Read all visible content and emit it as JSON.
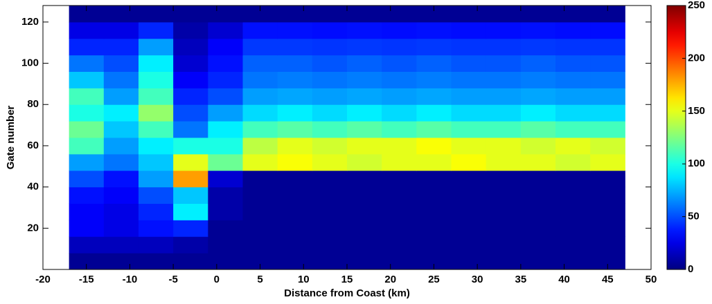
{
  "chart_data": {
    "type": "heatmap",
    "xlabel": "Distance from Coast (km)",
    "ylabel": "Gate number",
    "xlim": [
      -20,
      50
    ],
    "ylim": [
      0,
      128
    ],
    "xticks": [
      -20,
      -15,
      -10,
      -5,
      0,
      5,
      10,
      15,
      20,
      25,
      30,
      35,
      40,
      45,
      50
    ],
    "yticks": [
      20,
      40,
      60,
      80,
      100,
      120
    ],
    "x_edges": [
      -17,
      -13,
      -9,
      -5,
      -1,
      3,
      7,
      11,
      15,
      19,
      23,
      27,
      31,
      35,
      39,
      43,
      47
    ],
    "y_edges": [
      0,
      8,
      16,
      24,
      32,
      40,
      48,
      56,
      64,
      72,
      80,
      88,
      96,
      104,
      112,
      120,
      128
    ],
    "colorscale": "jet",
    "zlim": [
      0,
      250
    ],
    "zticks": [
      0,
      50,
      100,
      150,
      200,
      250
    ],
    "z": [
      [
        5,
        5,
        5,
        5,
        5,
        5,
        5,
        5,
        5,
        5,
        5,
        5,
        5,
        5,
        5,
        5
      ],
      [
        15,
        15,
        15,
        10,
        5,
        5,
        5,
        5,
        5,
        5,
        5,
        5,
        5,
        5,
        5,
        5
      ],
      [
        30,
        25,
        35,
        40,
        5,
        5,
        5,
        5,
        5,
        5,
        5,
        5,
        5,
        5,
        5,
        5
      ],
      [
        30,
        25,
        40,
        90,
        10,
        5,
        5,
        5,
        5,
        5,
        5,
        5,
        5,
        5,
        5,
        5
      ],
      [
        35,
        30,
        50,
        80,
        10,
        5,
        5,
        5,
        5,
        5,
        5,
        5,
        5,
        5,
        5,
        5
      ],
      [
        50,
        35,
        70,
        180,
        20,
        5,
        5,
        5,
        5,
        5,
        5,
        5,
        5,
        5,
        5,
        5
      ],
      [
        70,
        60,
        80,
        150,
        120,
        150,
        155,
        150,
        145,
        150,
        150,
        155,
        150,
        150,
        145,
        150
      ],
      [
        110,
        70,
        90,
        100,
        100,
        140,
        150,
        145,
        150,
        150,
        155,
        150,
        150,
        145,
        150,
        145
      ],
      [
        120,
        80,
        110,
        60,
        90,
        110,
        115,
        110,
        115,
        110,
        115,
        110,
        110,
        115,
        110,
        110
      ],
      [
        100,
        90,
        130,
        50,
        70,
        85,
        90,
        85,
        90,
        85,
        90,
        85,
        85,
        90,
        85,
        85
      ],
      [
        110,
        70,
        110,
        40,
        50,
        70,
        72,
        70,
        72,
        70,
        72,
        70,
        70,
        72,
        70,
        70
      ],
      [
        80,
        60,
        100,
        30,
        40,
        60,
        62,
        60,
        62,
        60,
        62,
        60,
        60,
        62,
        60,
        60
      ],
      [
        60,
        50,
        90,
        20,
        35,
        55,
        55,
        52,
        55,
        52,
        55,
        52,
        52,
        55,
        52,
        52
      ],
      [
        40,
        40,
        70,
        15,
        30,
        45,
        45,
        44,
        45,
        44,
        45,
        44,
        44,
        45,
        44,
        44
      ],
      [
        25,
        25,
        40,
        10,
        20,
        35,
        35,
        34,
        35,
        34,
        35,
        34,
        34,
        35,
        34,
        34
      ],
      [
        5,
        5,
        5,
        5,
        5,
        5,
        5,
        5,
        5,
        5,
        5,
        5,
        5,
        5,
        5,
        5
      ]
    ]
  }
}
